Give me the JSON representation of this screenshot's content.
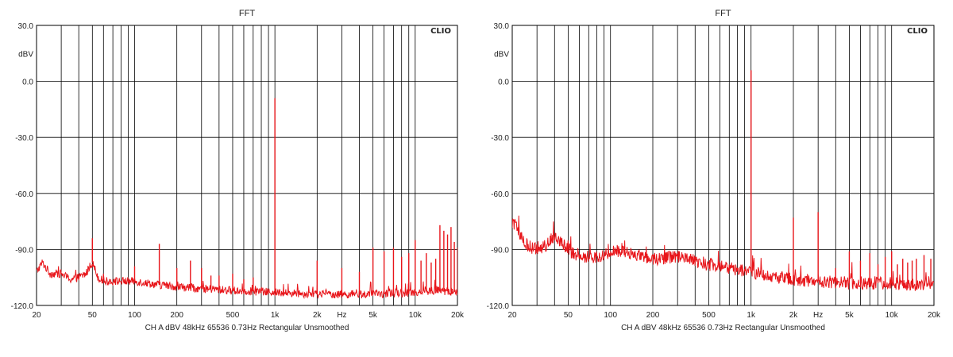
{
  "chart_data": [
    {
      "type": "line",
      "title": "FFT",
      "brand": "CLIO",
      "ylabel": "dBV",
      "xscale": "log",
      "xlim": [
        20,
        20000
      ],
      "ylim": [
        -120,
        30
      ],
      "grid": true,
      "yticks": [
        "30.0",
        "0.0",
        "-30.0",
        "-60.0",
        "-90.0",
        "-120.0"
      ],
      "xticks": [
        "20",
        "50",
        "100",
        "200",
        "500",
        "1k",
        "2k",
        "Hz",
        "5k",
        "10k",
        "20k"
      ],
      "footer": "CH A   dBV   48kHz   65536   0.73Hz   Rectangular   Unsmoothed",
      "color": "#e8161b",
      "noise_floor": [
        [
          20,
          -102
        ],
        [
          22,
          -97
        ],
        [
          25,
          -103
        ],
        [
          30,
          -103
        ],
        [
          35,
          -106
        ],
        [
          40,
          -105
        ],
        [
          45,
          -103
        ],
        [
          50,
          -97
        ],
        [
          55,
          -105
        ],
        [
          60,
          -107
        ],
        [
          70,
          -107
        ],
        [
          80,
          -107
        ],
        [
          100,
          -107
        ],
        [
          150,
          -109
        ],
        [
          200,
          -110
        ],
        [
          300,
          -111
        ],
        [
          500,
          -112
        ],
        [
          1000,
          -113
        ],
        [
          2000,
          -114
        ],
        [
          3000,
          -114
        ],
        [
          5000,
          -114
        ],
        [
          10000,
          -113
        ],
        [
          15000,
          -112
        ],
        [
          20000,
          -113
        ]
      ],
      "noise_amplitude": 2.2,
      "series": [
        {
          "values": [
            [
              50,
              -84
            ],
            [
              100,
              -99
            ],
            [
              150,
              -87
            ],
            [
              200,
              -100
            ],
            [
              250,
              -96
            ],
            [
              300,
              -100
            ],
            [
              350,
              -104
            ],
            [
              400,
              -104
            ],
            [
              500,
              -103
            ],
            [
              600,
              -106
            ],
            [
              700,
              -105
            ],
            [
              1000,
              -9
            ],
            [
              2000,
              -96
            ],
            [
              3000,
              -100
            ],
            [
              4000,
              -102
            ],
            [
              5000,
              -89
            ],
            [
              6000,
              -91
            ],
            [
              7000,
              -89
            ],
            [
              8000,
              -94
            ],
            [
              9000,
              -92
            ],
            [
              10000,
              -85
            ],
            [
              11000,
              -96
            ],
            [
              12000,
              -92
            ],
            [
              13000,
              -97
            ],
            [
              14000,
              -95
            ],
            [
              15000,
              -77
            ],
            [
              16000,
              -80
            ],
            [
              17000,
              -82
            ],
            [
              18000,
              -78
            ],
            [
              19000,
              -86
            ],
            [
              20000,
              -89
            ]
          ]
        }
      ]
    },
    {
      "type": "line",
      "title": "FFT",
      "brand": "CLIO",
      "ylabel": "dBV",
      "xscale": "log",
      "xlim": [
        20,
        20000
      ],
      "ylim": [
        -120,
        30
      ],
      "grid": true,
      "yticks": [
        "30.0",
        "0.0",
        "-30.0",
        "-60.0",
        "-90.0",
        "-120.0"
      ],
      "xticks": [
        "20",
        "50",
        "100",
        "200",
        "500",
        "1k",
        "2k",
        "Hz",
        "5k",
        "10k",
        "20k"
      ],
      "footer": "CH A   dBV   48kHz   65536   0.73Hz   Rectangular   Unsmoothed",
      "color": "#e8161b",
      "noise_floor": [
        [
          20,
          -75
        ],
        [
          22,
          -80
        ],
        [
          25,
          -88
        ],
        [
          30,
          -90
        ],
        [
          35,
          -88
        ],
        [
          40,
          -82
        ],
        [
          45,
          -86
        ],
        [
          50,
          -90
        ],
        [
          60,
          -94
        ],
        [
          80,
          -94
        ],
        [
          100,
          -92
        ],
        [
          120,
          -90
        ],
        [
          150,
          -93
        ],
        [
          200,
          -95
        ],
        [
          300,
          -94
        ],
        [
          500,
          -98
        ],
        [
          700,
          -100
        ],
        [
          1000,
          -102
        ],
        [
          1500,
          -105
        ],
        [
          2000,
          -106
        ],
        [
          3000,
          -107
        ],
        [
          5000,
          -108
        ],
        [
          10000,
          -108
        ],
        [
          15000,
          -109
        ],
        [
          20000,
          -110
        ]
      ],
      "noise_amplitude": 3.5,
      "series": [
        {
          "values": [
            [
              1000,
              6
            ],
            [
              2000,
              -73
            ],
            [
              3000,
              -70
            ],
            [
              4000,
              -100
            ],
            [
              5000,
              -91
            ],
            [
              6000,
              -96
            ],
            [
              7000,
              -92
            ],
            [
              8000,
              -98
            ],
            [
              9000,
              -94
            ],
            [
              10000,
              -91
            ],
            [
              11000,
              -98
            ],
            [
              12000,
              -95
            ],
            [
              13000,
              -97
            ],
            [
              14000,
              -96
            ],
            [
              15000,
              -95
            ],
            [
              17000,
              -93
            ],
            [
              19000,
              -95
            ]
          ]
        }
      ]
    }
  ]
}
